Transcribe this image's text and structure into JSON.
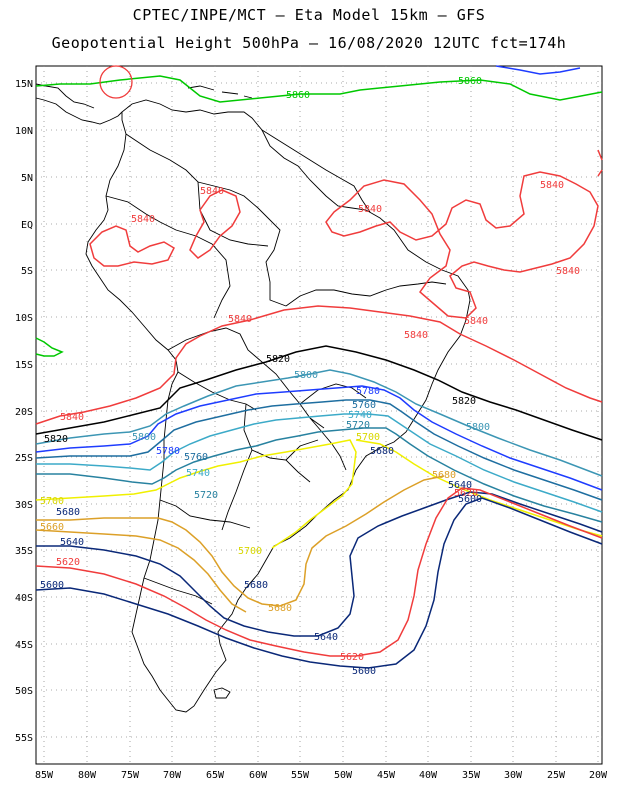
{
  "header": {
    "line1": "CPTEC/INPE/MCT –  Eta Model 15km – GFS",
    "line2": "Geopotential Height 500hPa – 16/08/2020 12UTC fct=174h"
  },
  "axes": {
    "lat_labels": [
      "15N",
      "10N",
      "5N",
      "EQ",
      "5S",
      "10S",
      "15S",
      "20S",
      "25S",
      "30S",
      "35S",
      "40S",
      "45S",
      "50S",
      "55S"
    ],
    "lon_labels": [
      "85W",
      "80W",
      "75W",
      "70W",
      "65W",
      "60W",
      "55W",
      "50W",
      "45W",
      "40W",
      "35W",
      "30W",
      "25W",
      "20W"
    ]
  },
  "colors": {
    "c5860": "#00c800",
    "c5840": "#f03c3c",
    "c5820": "#000000",
    "c5800": "#3c96b4",
    "c5780": "#1e3cff",
    "c5760": "#1e6ea0",
    "c5740": "#3caac8",
    "c5720": "#2882a0",
    "c5700": "#f0f000",
    "c5680": "#dca028",
    "c5660": "#dca028",
    "c5640": "#0a2878",
    "c5620": "#f03c3c",
    "c5600": "#0a2878",
    "land": "#000000",
    "grid": "#909090"
  },
  "contour_labels": {
    "l5860a": "5860",
    "l5860b": "5860",
    "l5840a": "5840",
    "l5840b": "5840",
    "l5840c": "5840",
    "l5840d": "5840",
    "l5840e": "5840",
    "l5840f": "5840",
    "l5840g": "5840",
    "l5840h": "5840",
    "l5820a": "5820",
    "l5820b": "5820",
    "l5820c": "5820",
    "l5800a": "5800",
    "l5800b": "5800",
    "l5800c": "5800",
    "l5780a": "5780",
    "l5780b": "5780",
    "l5760a": "5760",
    "l5760b": "5760",
    "l5740a": "5740",
    "l5740b": "5740",
    "l5720a": "5720",
    "l5720b": "5720",
    "l5700a": "5700",
    "l5700b": "5700",
    "l5700c": "5700",
    "l5680a": "5680",
    "l5680b": "5680",
    "l5680c": "5680",
    "l5680d": "5680",
    "l5680e": "5680",
    "l5660a": "5660",
    "l5640a": "5640",
    "l5640b": "5640",
    "l5640c": "5640",
    "l5620a": "5620",
    "l5620b": "5620",
    "l5620c": "5620",
    "l5600a": "5600",
    "l5600b": "5600"
  }
}
